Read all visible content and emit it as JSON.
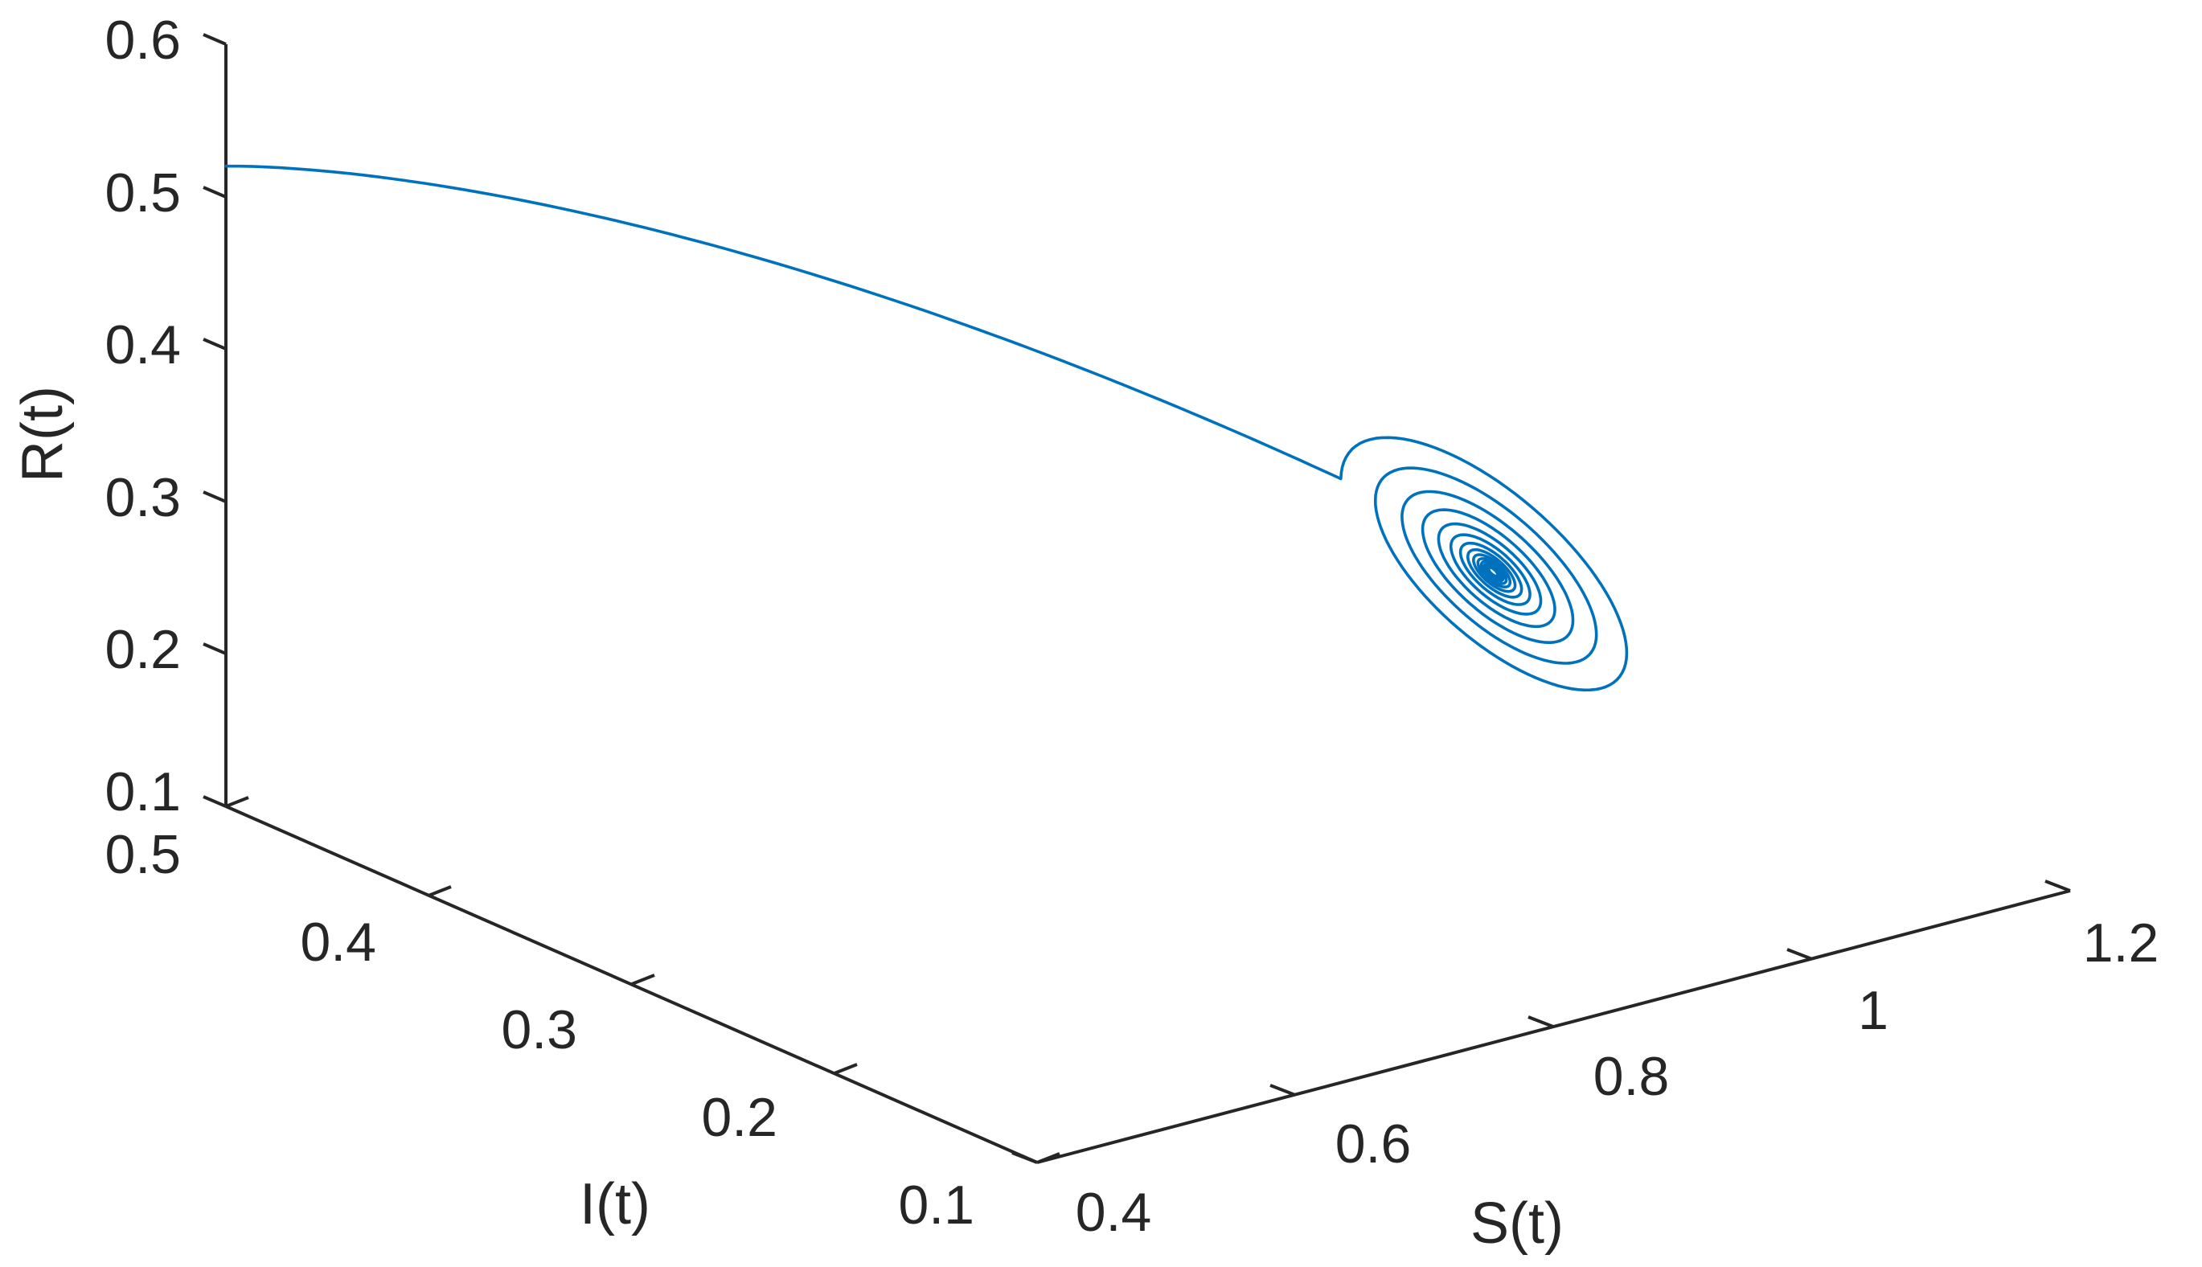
{
  "chart_data": {
    "type": "line",
    "projection": "3d",
    "title": "",
    "xlabel": "S(t)",
    "ylabel": "I(t)",
    "zlabel": "R(t)",
    "xlim": [
      0.4,
      1.2
    ],
    "ylim": [
      0.1,
      0.5
    ],
    "zlim": [
      0.1,
      0.6
    ],
    "xticks": [
      "0.4",
      "0.6",
      "0.8",
      "1",
      "1.2"
    ],
    "yticks": [
      "0.1",
      "0.2",
      "0.3",
      "0.4",
      "0.5"
    ],
    "zticks": [
      "0.1",
      "0.2",
      "0.3",
      "0.4",
      "0.5",
      "0.6"
    ],
    "grid": false,
    "series": [
      {
        "color": "#0072bd",
        "start": {
          "S": 0.4,
          "I": 0.5,
          "R": 0.52
        },
        "equilibrium": {
          "S": 1.02,
          "I": 0.27,
          "R": 0.25
        },
        "behavior": "spiral converging to equilibrium"
      }
    ]
  }
}
